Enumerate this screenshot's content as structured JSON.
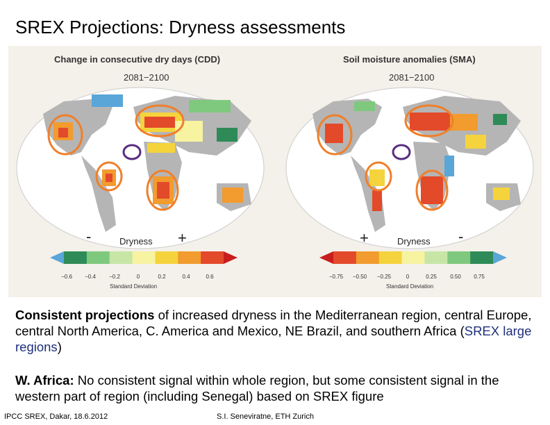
{
  "slide": {
    "title": "SREX Projections: Dryness assessments",
    "left_panel": {
      "title": "Change in consecutive dry days (CDD)",
      "period": "2081−2100",
      "minus": "-",
      "plus": "+",
      "bar_label": "Dryness",
      "ticks": [
        "−0.6",
        "−0.4",
        "−0.2",
        "0",
        "0.2",
        "0.4",
        "0.6"
      ],
      "axis_label": "Standard Deviation"
    },
    "right_panel": {
      "title": "Soil moisture anomalies (SMA)",
      "period": "2081−2100",
      "plus": "+",
      "minus": "-",
      "bar_label": "Dryness",
      "ticks": [
        "−0.75",
        "−0.50",
        "−0.25",
        "0",
        "0.25",
        "0.50",
        "0.75"
      ],
      "axis_label": "Standard Deviation"
    },
    "paragraph1": {
      "bold": "Consistent projections",
      "text": " of increased dryness in the Mediterranean region, central Europe, central North America, C. America and Mexico, NE Brazil, and southern Africa (",
      "link": "SREX large regions",
      "end": ")"
    },
    "paragraph2": {
      "bold": "W. Africa:",
      "text": " No consistent signal within whole region, but some consistent signal in the western part of region (including Senegal) based on SREX figure"
    },
    "footer_left": "IPCC SREX, Dakar, 18.6.2012",
    "footer_center": "S.I. Seneviratne, ETH Zurich",
    "colors": {
      "cdd_scale": [
        "#5aa6d8",
        "#2e8b57",
        "#7fc97f",
        "#c7e6a6",
        "#f7f3a0",
        "#f5d33c",
        "#f29b2e",
        "#e34a2a",
        "#c81e1e"
      ],
      "sma_scale": [
        "#c81e1e",
        "#e34a2a",
        "#f29b2e",
        "#f5d33c",
        "#f7f3a0",
        "#c7e6a6",
        "#7fc97f",
        "#2e8b57",
        "#5aa6d8"
      ],
      "orange_circle": "#f07f2a",
      "purple_circle": "#5a2d82",
      "land": "#b5b5b5",
      "ocean": "#ffffff"
    }
  }
}
